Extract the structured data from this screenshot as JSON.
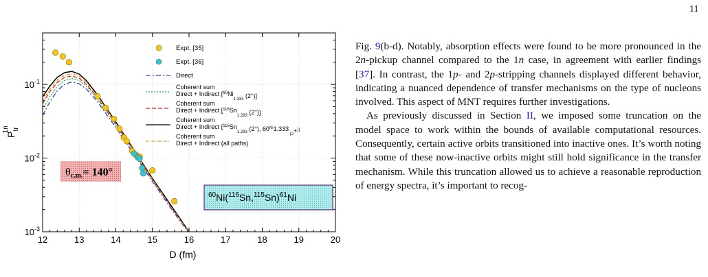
{
  "page": {
    "number": "11"
  },
  "figure": {
    "y_axis_label_main": "P",
    "y_axis_label_sub": "tr",
    "y_axis_label_sup": "1n",
    "x_axis_label": "D (fm)",
    "theta_label": "θ",
    "theta_sub": "c.m.",
    "theta_value": "= 140°",
    "reaction_parts": [
      "60",
      "Ni(",
      "116",
      "Sn,",
      "115",
      "Sn)",
      "61",
      "Ni"
    ],
    "legend": [
      {
        "kind": "marker",
        "color": "#f5c518",
        "text": "Expt. [35]"
      },
      {
        "kind": "marker",
        "color": "#29c6e8",
        "text": "Expt. [36]"
      },
      {
        "kind": "line",
        "color": "#2d45d6",
        "dash": "7,3,2,3",
        "text": "Direct"
      },
      {
        "kind": "line",
        "color": "#18b43a",
        "dash": "2,2",
        "text": "Coherent sum",
        "text2_parts": [
          "Direct + Indirect [",
          "60",
          "Ni",
          "1.333",
          " (2",
          "+",
          ")]"
        ]
      },
      {
        "kind": "line",
        "color": "#e02020",
        "dash": "6,3",
        "text": "Coherent sum",
        "text2_parts": [
          "Direct + Indirect [",
          "116",
          "Sn",
          "1.293",
          " (2",
          "+",
          ")]"
        ]
      },
      {
        "kind": "line",
        "color": "#000000",
        "dash": "",
        "text": "Coherent sum",
        "text2_parts": [
          "Direct + Indirect [",
          "116",
          "Sn",
          "1.293",
          " (2",
          "+",
          "), ",
          "60",
          "Ni",
          "1.333",
          " (2",
          "+",
          ")]"
        ]
      },
      {
        "kind": "line",
        "color": "#f08c1e",
        "dash": "4,2,1,2",
        "text": "Coherent sum",
        "text2_parts": [
          "Direct + Indirect (all paths)"
        ]
      }
    ]
  },
  "chart_data": {
    "type": "line",
    "xlabel": "D (fm)",
    "ylabel": "P_tr^1n",
    "xlim": [
      12,
      20
    ],
    "ylim": [
      0.001,
      0.5
    ],
    "y_scale": "log",
    "x_ticks": [
      "12",
      "13",
      "14",
      "15",
      "16",
      "17",
      "18",
      "19",
      "20"
    ],
    "y_ticks": [
      {
        "value": 0.001,
        "base": "10",
        "exp": "-3"
      },
      {
        "value": 0.01,
        "base": "10",
        "exp": "-2"
      },
      {
        "value": 0.1,
        "base": "10",
        "exp": "-1"
      }
    ],
    "series": [
      {
        "name": "Expt. [35]",
        "kind": "scatter",
        "color": "#f5c518",
        "x": [
          12.35,
          12.55,
          12.72,
          13.5,
          13.72,
          13.95,
          14.1,
          14.22,
          14.3,
          14.45,
          14.55,
          14.65,
          15.0,
          15.6
        ],
        "y": [
          0.27,
          0.24,
          0.2,
          0.069,
          0.048,
          0.034,
          0.025,
          0.019,
          0.017,
          0.0125,
          0.011,
          0.0105,
          0.0068,
          0.0026
        ]
      },
      {
        "name": "Expt. [36]",
        "kind": "scatter",
        "color": "#29c6e8",
        "x": [
          14.5,
          14.6,
          14.65,
          14.72,
          14.75
        ],
        "y": [
          0.0115,
          0.0102,
          0.0098,
          0.0073,
          0.0062
        ]
      },
      {
        "name": "Direct",
        "color": "#2d45d6",
        "dash": "7,3,2,3",
        "x": [
          12,
          12.2,
          12.4,
          12.6,
          12.8,
          13.0,
          13.2,
          13.5,
          14.0,
          14.5,
          15.0,
          15.5,
          16.0,
          16.2
        ],
        "y": [
          0.038,
          0.058,
          0.082,
          0.1,
          0.108,
          0.102,
          0.086,
          0.058,
          0.026,
          0.0112,
          0.0048,
          0.0021,
          0.00095,
          0.00075
        ]
      },
      {
        "name": "Direct + Indirect [60Ni1.333 (2+)]",
        "color": "#18b43a",
        "dash": "2,2",
        "x": [
          12,
          12.2,
          12.4,
          12.6,
          12.8,
          13.0,
          13.2,
          13.5,
          14.0,
          14.5,
          15.0,
          15.5,
          16.0,
          16.2
        ],
        "y": [
          0.046,
          0.068,
          0.094,
          0.113,
          0.12,
          0.113,
          0.094,
          0.063,
          0.028,
          0.0119,
          0.005,
          0.0022,
          0.00097,
          0.00076
        ]
      },
      {
        "name": "Direct + Indirect [116Sn1.293 (2+)]",
        "color": "#e02020",
        "dash": "6,3",
        "x": [
          12,
          12.2,
          12.4,
          12.6,
          12.8,
          13.0,
          13.2,
          13.5,
          14.0,
          14.5,
          15.0,
          15.5,
          16.0,
          16.2
        ],
        "y": [
          0.055,
          0.08,
          0.106,
          0.125,
          0.13,
          0.121,
          0.1,
          0.066,
          0.029,
          0.0122,
          0.0051,
          0.0022,
          0.00098,
          0.00077
        ]
      },
      {
        "name": "Direct + Indirect [116Sn1.293 (2+), 60Ni1.333 (2+)]",
        "color": "#000000",
        "dash": "",
        "x": [
          12,
          12.2,
          12.4,
          12.6,
          12.8,
          13.0,
          13.2,
          13.5,
          14.0,
          14.5,
          15.0,
          15.5,
          16.0,
          16.2
        ],
        "y": [
          0.068,
          0.095,
          0.125,
          0.145,
          0.15,
          0.138,
          0.112,
          0.072,
          0.031,
          0.0128,
          0.0053,
          0.0023,
          0.001,
          0.00078
        ]
      },
      {
        "name": "Direct + Indirect (all paths)",
        "color": "#f08c1e",
        "dash": "4,2,1,2",
        "x": [
          12,
          12.2,
          12.4,
          12.6,
          12.8,
          13.0,
          13.2,
          13.5,
          14.0,
          14.5,
          15.0,
          15.5,
          16.0,
          16.2
        ],
        "y": [
          0.06,
          0.086,
          0.114,
          0.134,
          0.139,
          0.129,
          0.106,
          0.069,
          0.03,
          0.0125,
          0.0052,
          0.0022,
          0.00099,
          0.00077
        ]
      }
    ]
  },
  "text_column": {
    "p1": [
      {
        "t": "Fig. "
      },
      {
        "t": "9",
        "link": true
      },
      {
        "t": "(b-d). Notably, absorption effects were found to be more pronounced in the 2"
      },
      {
        "t": "n",
        "i": true
      },
      {
        "t": "-pickup channel compared to the 1"
      },
      {
        "t": "n",
        "i": true
      },
      {
        "t": " case, in agreement with earlier findings ["
      },
      {
        "t": "37",
        "link": true
      },
      {
        "t": "]. In contrast, the 1"
      },
      {
        "t": "p",
        "i": true
      },
      {
        "t": "- and 2"
      },
      {
        "t": "p",
        "i": true
      },
      {
        "t": "-stripping channels displayed different behavior, indicating a nuanced dependence of transfer mechanisms on the type of nucleons involved. This aspect of MNT requires further investigations."
      }
    ],
    "p2": [
      {
        "t": "As previously discussed in Section "
      },
      {
        "t": "II",
        "link": true
      },
      {
        "t": ", we imposed some truncation on the model space to work within the bounds of available computational resources. Consequently, certain active orbits transitioned into inactive ones.  It’s worth noting that some of these now-inactive orbits might still hold significance in the transfer mechanism. While this truncation allowed us to achieve a reasonable reproduction of energy spectra, it’s important to recog-"
      }
    ]
  }
}
